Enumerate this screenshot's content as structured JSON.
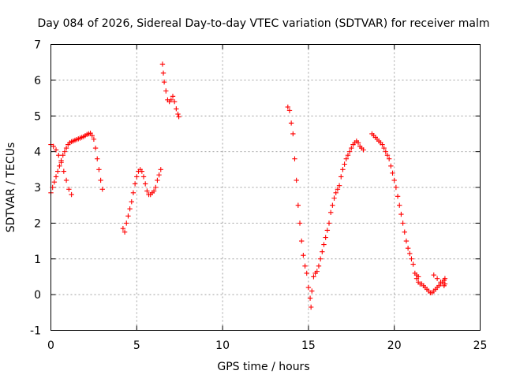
{
  "chart_data": {
    "type": "scatter",
    "title": "Day 084 of 2026, Sidereal Day-to-day VTEC variation (SDTVAR) for receiver malm",
    "xlabel": "GPS time / hours",
    "ylabel": "SDTVAR / TECUs",
    "xlim": [
      0,
      25
    ],
    "ylim": [
      -1,
      7
    ],
    "xticks": [
      0,
      5,
      10,
      15,
      20,
      25
    ],
    "yticks": [
      -1,
      0,
      1,
      2,
      3,
      4,
      5,
      6,
      7
    ],
    "grid": true,
    "marker": "+",
    "color": "#ff0000",
    "series": [
      {
        "name": "SDTVAR",
        "points": [
          [
            0.0,
            2.85
          ],
          [
            0.1,
            3.0
          ],
          [
            0.2,
            3.15
          ],
          [
            0.3,
            3.3
          ],
          [
            0.4,
            3.45
          ],
          [
            0.5,
            3.6
          ],
          [
            0.6,
            3.75
          ],
          [
            0.7,
            3.9
          ],
          [
            0.8,
            4.0
          ],
          [
            0.9,
            4.1
          ],
          [
            1.0,
            4.2
          ],
          [
            1.1,
            4.25
          ],
          [
            1.2,
            4.28
          ],
          [
            1.3,
            4.3
          ],
          [
            1.4,
            4.32
          ],
          [
            1.5,
            4.34
          ],
          [
            1.6,
            4.36
          ],
          [
            1.7,
            4.38
          ],
          [
            1.8,
            4.4
          ],
          [
            1.9,
            4.42
          ],
          [
            2.0,
            4.45
          ],
          [
            2.1,
            4.48
          ],
          [
            2.2,
            4.5
          ],
          [
            2.3,
            4.52
          ],
          [
            2.4,
            4.45
          ],
          [
            2.5,
            4.35
          ],
          [
            2.6,
            4.1
          ],
          [
            2.7,
            3.8
          ],
          [
            2.8,
            3.5
          ],
          [
            2.9,
            3.2
          ],
          [
            3.0,
            2.95
          ],
          [
            0.0,
            4.2
          ],
          [
            0.15,
            4.15
          ],
          [
            0.3,
            4.05
          ],
          [
            0.45,
            3.9
          ],
          [
            0.6,
            3.7
          ],
          [
            0.75,
            3.45
          ],
          [
            0.9,
            3.2
          ],
          [
            1.05,
            2.95
          ],
          [
            1.2,
            2.8
          ],
          [
            4.2,
            1.85
          ],
          [
            4.3,
            1.75
          ],
          [
            4.4,
            2.0
          ],
          [
            4.5,
            2.2
          ],
          [
            4.6,
            2.4
          ],
          [
            4.7,
            2.6
          ],
          [
            4.8,
            2.85
          ],
          [
            4.9,
            3.1
          ],
          [
            5.0,
            3.3
          ],
          [
            5.1,
            3.45
          ],
          [
            5.2,
            3.5
          ],
          [
            5.3,
            3.45
          ],
          [
            5.4,
            3.3
          ],
          [
            5.5,
            3.1
          ],
          [
            5.6,
            2.9
          ],
          [
            5.7,
            2.8
          ],
          [
            5.8,
            2.8
          ],
          [
            5.9,
            2.85
          ],
          [
            6.0,
            2.9
          ],
          [
            6.1,
            3.0
          ],
          [
            6.2,
            3.2
          ],
          [
            6.3,
            3.35
          ],
          [
            6.4,
            3.5
          ],
          [
            6.5,
            6.45
          ],
          [
            6.55,
            6.2
          ],
          [
            6.6,
            5.95
          ],
          [
            6.7,
            5.7
          ],
          [
            6.8,
            5.45
          ],
          [
            6.9,
            5.4
          ],
          [
            7.0,
            5.45
          ],
          [
            7.1,
            5.55
          ],
          [
            7.2,
            5.4
          ],
          [
            7.3,
            5.2
          ],
          [
            7.4,
            5.05
          ],
          [
            7.45,
            4.98
          ],
          [
            13.8,
            5.25
          ],
          [
            13.9,
            5.15
          ],
          [
            14.0,
            4.8
          ],
          [
            14.1,
            4.5
          ],
          [
            14.2,
            3.8
          ],
          [
            14.3,
            3.2
          ],
          [
            14.4,
            2.5
          ],
          [
            14.5,
            2.0
          ],
          [
            14.6,
            1.5
          ],
          [
            14.7,
            1.1
          ],
          [
            14.8,
            0.8
          ],
          [
            14.9,
            0.6
          ],
          [
            15.0,
            0.2
          ],
          [
            15.1,
            -0.1
          ],
          [
            15.15,
            -0.35
          ],
          [
            15.2,
            0.1
          ],
          [
            15.3,
            0.5
          ],
          [
            15.4,
            0.6
          ],
          [
            15.5,
            0.65
          ],
          [
            15.6,
            0.8
          ],
          [
            15.7,
            1.0
          ],
          [
            15.8,
            1.2
          ],
          [
            15.9,
            1.4
          ],
          [
            16.0,
            1.6
          ],
          [
            16.1,
            1.8
          ],
          [
            16.2,
            2.0
          ],
          [
            16.3,
            2.3
          ],
          [
            16.4,
            2.5
          ],
          [
            16.5,
            2.7
          ],
          [
            16.6,
            2.85
          ],
          [
            16.7,
            2.95
          ],
          [
            16.8,
            3.05
          ],
          [
            16.9,
            3.3
          ],
          [
            17.0,
            3.5
          ],
          [
            17.1,
            3.65
          ],
          [
            17.2,
            3.8
          ],
          [
            17.3,
            3.9
          ],
          [
            17.4,
            4.0
          ],
          [
            17.5,
            4.1
          ],
          [
            17.6,
            4.2
          ],
          [
            17.7,
            4.25
          ],
          [
            17.8,
            4.3
          ],
          [
            17.9,
            4.25
          ],
          [
            18.0,
            4.15
          ],
          [
            18.1,
            4.1
          ],
          [
            18.2,
            4.05
          ],
          [
            18.7,
            4.5
          ],
          [
            18.8,
            4.45
          ],
          [
            18.9,
            4.4
          ],
          [
            19.0,
            4.35
          ],
          [
            19.1,
            4.3
          ],
          [
            19.2,
            4.25
          ],
          [
            19.3,
            4.2
          ],
          [
            19.4,
            4.1
          ],
          [
            19.5,
            4.0
          ],
          [
            19.6,
            3.9
          ],
          [
            19.7,
            3.8
          ],
          [
            19.8,
            3.6
          ],
          [
            19.9,
            3.4
          ],
          [
            20.0,
            3.2
          ],
          [
            20.1,
            3.0
          ],
          [
            20.2,
            2.75
          ],
          [
            20.3,
            2.5
          ],
          [
            20.4,
            2.25
          ],
          [
            20.5,
            2.0
          ],
          [
            20.6,
            1.75
          ],
          [
            20.7,
            1.5
          ],
          [
            20.8,
            1.3
          ],
          [
            20.9,
            1.15
          ],
          [
            21.0,
            1.0
          ],
          [
            21.1,
            0.85
          ],
          [
            21.2,
            0.6
          ],
          [
            21.3,
            0.45
          ],
          [
            21.4,
            0.35
          ],
          [
            21.5,
            0.3
          ],
          [
            21.6,
            0.3
          ],
          [
            21.7,
            0.25
          ],
          [
            21.8,
            0.2
          ],
          [
            21.9,
            0.15
          ],
          [
            22.0,
            0.1
          ],
          [
            22.1,
            0.05
          ],
          [
            22.2,
            0.05
          ],
          [
            22.3,
            0.1
          ],
          [
            22.4,
            0.15
          ],
          [
            22.5,
            0.2
          ],
          [
            22.6,
            0.25
          ],
          [
            22.7,
            0.3
          ],
          [
            22.8,
            0.35
          ],
          [
            22.9,
            0.4
          ],
          [
            22.95,
            0.45
          ],
          [
            21.3,
            0.55
          ],
          [
            21.4,
            0.5
          ],
          [
            22.3,
            0.55
          ],
          [
            22.5,
            0.45
          ],
          [
            22.7,
            0.35
          ],
          [
            22.9,
            0.25
          ],
          [
            22.95,
            0.3
          ]
        ]
      }
    ]
  }
}
